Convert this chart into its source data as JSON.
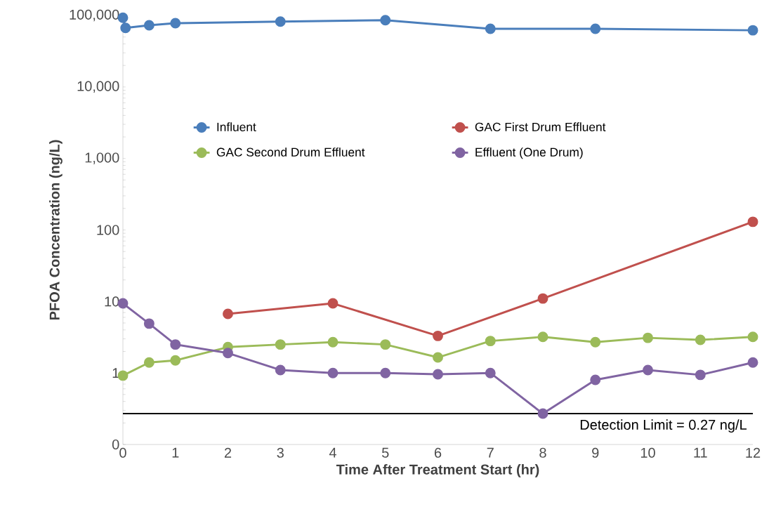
{
  "chart_data": {
    "type": "line",
    "xlabel": "Time After Treatment Start (hr)",
    "ylabel": "PFOA Concentration (ng/L)",
    "log": "y",
    "xlim": [
      0,
      12
    ],
    "ylim": [
      0.1,
      100000
    ],
    "xticks": [
      0,
      1,
      2,
      3,
      4,
      5,
      6,
      7,
      8,
      9,
      10,
      11,
      12
    ],
    "yticks": [
      {
        "value": 0.1,
        "label": "0"
      },
      {
        "value": 1,
        "label": "1"
      },
      {
        "value": 10,
        "label": "10"
      },
      {
        "value": 100,
        "label": "100"
      },
      {
        "value": 1000,
        "label": "1,000"
      },
      {
        "value": 10000,
        "label": "10,000"
      },
      {
        "value": 100000,
        "label": "100,000"
      }
    ],
    "grid": false,
    "legend": "top",
    "marker": "circle",
    "line_style": "solid",
    "series": [
      {
        "name": "Influent",
        "color": "#4a7ebb",
        "x": [
          0,
          0.05,
          0.5,
          1,
          3,
          5,
          7,
          9,
          12
        ],
        "values": [
          93000,
          67000,
          73000,
          78000,
          82000,
          86000,
          65000,
          65000,
          62000
        ]
      },
      {
        "name": "GAC First Drum Effluent",
        "color": "#c0504d",
        "x": [
          2,
          4,
          6,
          8,
          12
        ],
        "values": [
          6.7,
          9.4,
          3.3,
          11,
          130
        ]
      },
      {
        "name": "GAC Second Drum Effluent",
        "color": "#9bbb59",
        "x": [
          0,
          0.5,
          1,
          2,
          3,
          4,
          5,
          6,
          7,
          8,
          9,
          10,
          11,
          12
        ],
        "values": [
          0.92,
          1.4,
          1.5,
          2.3,
          2.5,
          2.7,
          2.5,
          1.65,
          2.8,
          3.2,
          2.7,
          3.1,
          2.9,
          3.2
        ]
      },
      {
        "name": "Effluent (One Drum)",
        "color": "#8064a2",
        "x": [
          0,
          0.5,
          1,
          2,
          3,
          4,
          5,
          6,
          7,
          8,
          9,
          10,
          11,
          12
        ],
        "values": [
          9.4,
          4.9,
          2.5,
          1.9,
          1.1,
          1.0,
          1.0,
          0.96,
          1.0,
          0.27,
          0.8,
          1.1,
          0.94,
          1.4
        ]
      }
    ],
    "ref_lines": [
      {
        "axis": "y",
        "value": 0.27,
        "label": "Detection Limit = 0.27 ng/L",
        "color": "#000000"
      }
    ]
  }
}
